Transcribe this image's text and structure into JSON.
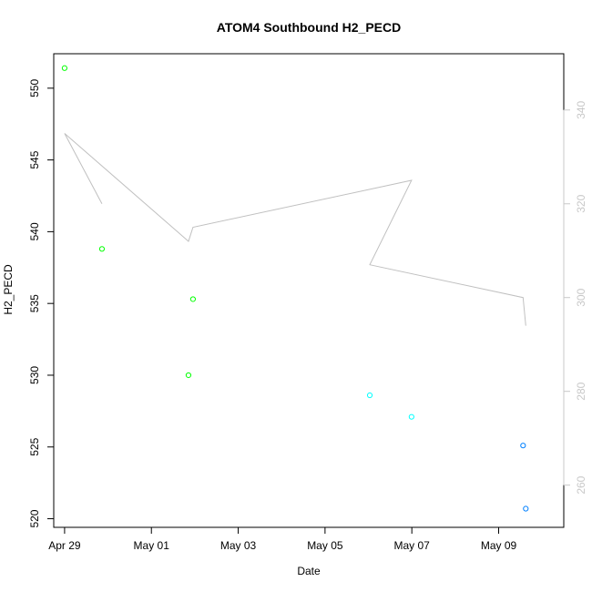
{
  "chart_data": {
    "type": "scatter",
    "title": "ATOM4 Southbound H2_PECD",
    "xlabel": "Date",
    "ylabel": "H2_PECD",
    "xlim": [
      "2022-04-28T18:00",
      "2022-05-10T12:00"
    ],
    "ylim": [
      519.4,
      552.4
    ],
    "y2lim": [
      251,
      352
    ],
    "x_ticks": [
      {
        "value": "2022-04-29",
        "label": "Apr 29"
      },
      {
        "value": "2022-05-01",
        "label": "May 01"
      },
      {
        "value": "2022-05-03",
        "label": "May 03"
      },
      {
        "value": "2022-05-05",
        "label": "May 05"
      },
      {
        "value": "2022-05-07",
        "label": "May 07"
      },
      {
        "value": "2022-05-09",
        "label": "May 09"
      }
    ],
    "y_ticks": [
      "520",
      "525",
      "530",
      "535",
      "540",
      "545",
      "550"
    ],
    "y2_ticks": [
      "260",
      "280",
      "300",
      "320",
      "340"
    ],
    "grid": false,
    "legend": "none",
    "series": [
      {
        "kind": "points",
        "color": "#00ff00",
        "x": [
          "2022-04-29T00:00",
          "2022-04-29T20:40",
          "2022-05-01T20:30",
          "2022-05-01T23:00"
        ],
        "y": [
          551.4,
          538.8,
          530.0,
          535.3
        ]
      },
      {
        "kind": "points",
        "color": "#00ffff",
        "x": [
          "2022-05-06T00:45",
          "2022-05-06T23:50"
        ],
        "y": [
          528.6,
          527.1
        ]
      },
      {
        "kind": "points",
        "color": "#0080ff",
        "x": [
          "2022-05-09T13:30",
          "2022-05-09T15:00"
        ],
        "y": [
          525.1,
          520.7
        ]
      },
      {
        "kind": "line",
        "axis": "right",
        "color": "#c0c0c0",
        "x": [
          "2022-04-29T20:40",
          "2022-04-29T00:00",
          "2022-05-01T20:30",
          "2022-05-01T23:00",
          "2022-05-06T23:50",
          "2022-05-06T00:45",
          "2022-05-09T13:30",
          "2022-05-09T15:00"
        ],
        "y": [
          320,
          335,
          312,
          315,
          325,
          307,
          300,
          294
        ]
      }
    ]
  }
}
